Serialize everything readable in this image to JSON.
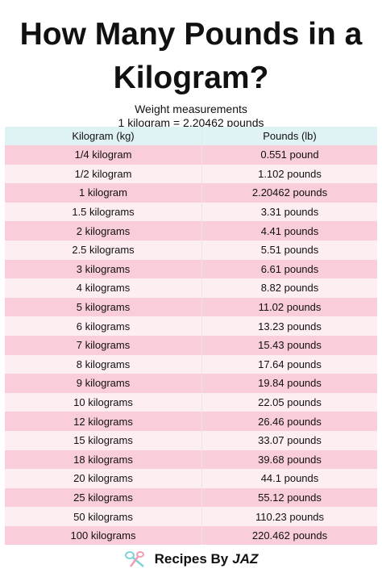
{
  "header": {
    "title_lines": [
      "How Many Pounds in a",
      "Kilogram?"
    ],
    "subtitle": "Weight measurements",
    "formula": "1 kilogram =  2.20462 pounds"
  },
  "table": {
    "columns": [
      "Kilogram (kg)",
      "Pounds (lb)"
    ],
    "rows": [
      [
        "1/4 kilogram",
        "0.551 pound"
      ],
      [
        "1/2 kilogram",
        "1.102 pounds"
      ],
      [
        "1 kilogram",
        "2.20462 pounds"
      ],
      [
        "1.5 kilograms",
        "3.31 pounds"
      ],
      [
        "2 kilograms",
        "4.41 pounds"
      ],
      [
        "2.5 kilograms",
        "5.51 pounds"
      ],
      [
        "3 kilograms",
        "6.61 pounds"
      ],
      [
        "4 kilograms",
        "8.82 pounds"
      ],
      [
        "5 kilograms",
        "11.02 pounds"
      ],
      [
        "6 kilograms",
        "13.23 pounds"
      ],
      [
        "7 kilograms",
        "15.43 pounds"
      ],
      [
        "8 kilograms",
        "17.64 pounds"
      ],
      [
        "9 kilograms",
        "19.84 pounds"
      ],
      [
        "10 kilograms",
        "22.05 pounds"
      ],
      [
        "12 kilograms",
        "26.46 pounds"
      ],
      [
        "15 kilograms",
        "33.07 pounds"
      ],
      [
        "18 kilograms",
        "39.68 pounds"
      ],
      [
        "20 kilograms",
        "44.1 pounds"
      ],
      [
        "25 kilograms",
        "55.12 pounds"
      ],
      [
        "50 kilograms",
        "110.23 pounds"
      ],
      [
        "100 kilograms",
        "220.462 pounds"
      ]
    ]
  },
  "footer": {
    "brand": "Recipes By",
    "brand_name": "JAZ"
  }
}
